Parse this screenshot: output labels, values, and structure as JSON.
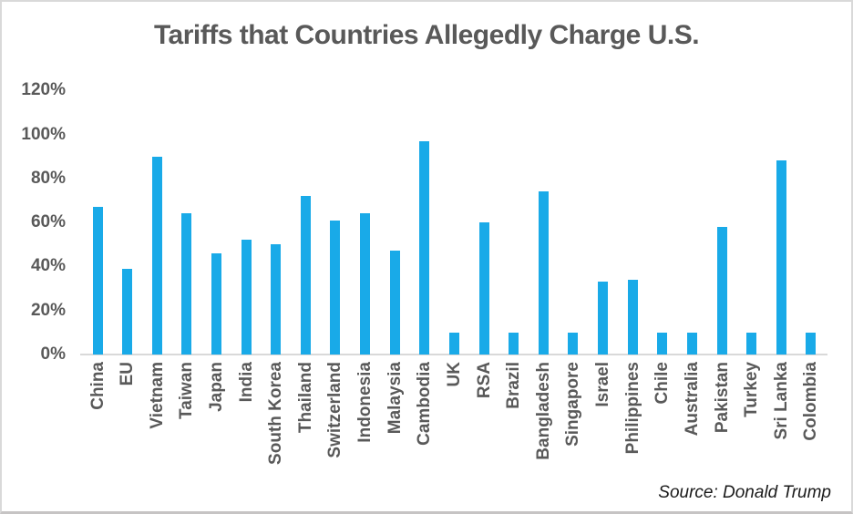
{
  "title": "Tariffs that Countries Allegedly Charge U.S.",
  "source_credit": "Source: Donald Trump",
  "colors": {
    "bar": "#19aae8",
    "label_text": "#595959",
    "axis_line": "#d9d9d9",
    "source_text": "#1a1a1a"
  },
  "chart_data": {
    "type": "bar",
    "title": "Tariffs that Countries Allegedly Charge U.S.",
    "xlabel": "",
    "ylabel": "",
    "ylim": [
      0,
      120
    ],
    "grid": false,
    "legend": "none",
    "annotation": "Source: Donald Trump",
    "yticks": [
      {
        "value": 0,
        "label": "0%"
      },
      {
        "value": 20,
        "label": "20%"
      },
      {
        "value": 40,
        "label": "40%"
      },
      {
        "value": 60,
        "label": "60%"
      },
      {
        "value": 80,
        "label": "80%"
      },
      {
        "value": 100,
        "label": "100%"
      },
      {
        "value": 120,
        "label": "120%"
      }
    ],
    "categories": [
      "China",
      "EU",
      "Vietnam",
      "Taiwan",
      "Japan",
      "India",
      "South Korea",
      "Thailand",
      "Switzerland",
      "Indonesia",
      "Malaysia",
      "Cambodia",
      "UK",
      "RSA",
      "Brazil",
      "Bangladesh",
      "Singapore",
      "Israel",
      "Philippines",
      "Chile",
      "Australia",
      "Pakistan",
      "Turkey",
      "Sri Lanka",
      "Colombia"
    ],
    "values": [
      67,
      39,
      90,
      64,
      46,
      52,
      50,
      72,
      61,
      64,
      47,
      97,
      10,
      60,
      10,
      74,
      10,
      33,
      34,
      10,
      10,
      58,
      10,
      88,
      10
    ],
    "unit": "%"
  }
}
